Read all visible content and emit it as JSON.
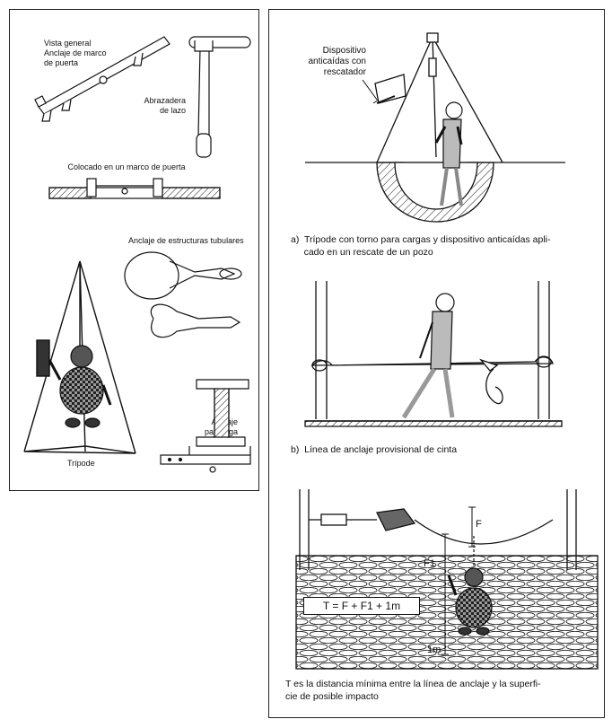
{
  "left_panel": {
    "door_frame_general": "Vista general\nAnclaje de marco\nde puerta",
    "clamp": "Abrazadera\nde lazo",
    "door_frame_placed": "Colocado en un marco de puerta",
    "tubular": "Anclaje de estructuras tubulares",
    "beam": "Anclaje\npara viga",
    "tripod": "Trípode"
  },
  "right_panel": {
    "fall_arrest_label": "Dispositivo\nanticaídas con\nrescatador",
    "caption_a": "a)  Trípode con torno para cargas y dispositivo anticaídas apli-\n     cado en un rescate de un pozo",
    "caption_b": "b)  Línea de anclaje provisional de cinta",
    "label_F": "F",
    "label_F1": "F1",
    "label_1m": "1m",
    "formula": "T = F + F1 + 1m",
    "caption_c": "T es la distancia mínima entre la línea de anclaje y la superfi-\ncie de posible impacto"
  }
}
